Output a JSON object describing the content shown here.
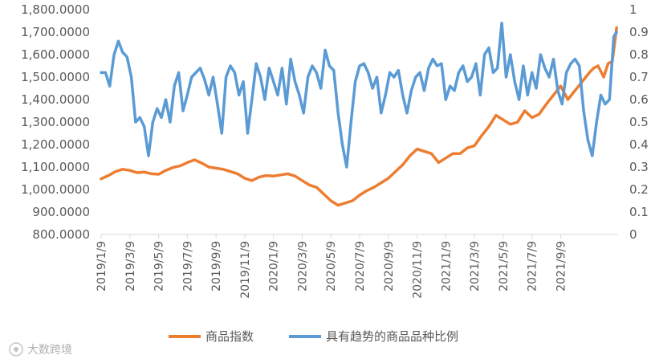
{
  "chart_data": {
    "type": "line",
    "title": "",
    "xlabel": "",
    "ylabel": "",
    "ylim": [
      800,
      1800
    ],
    "y2lim": [
      0,
      1
    ],
    "grid": false,
    "legend_position": "bottom",
    "left_ticks": [
      "800.0000",
      "900.0000",
      "1,000.0000",
      "1,100.0000",
      "1,200.0000",
      "1,300.0000",
      "1,400.0000",
      "1,500.0000",
      "1,600.0000",
      "1,700.0000",
      "1,800.0000"
    ],
    "right_ticks": [
      "0",
      "0.1",
      "0.2",
      "0.3",
      "0.4",
      "0.5",
      "0.6",
      "0.7",
      "0.8",
      "0.9",
      "1"
    ],
    "x_ticks": [
      "2019/1/9",
      "2019/3/9",
      "2019/5/9",
      "2019/7/9",
      "2019/9/9",
      "2019/11/9",
      "2020/1/9",
      "2020/3/9",
      "2020/5/9",
      "2020/7/9",
      "2020/9/9",
      "2020/11/9",
      "2021/1/9",
      "2021/3/9",
      "2021/5/9",
      "2021/7/9",
      "2021/9/9"
    ],
    "x_range_months": [
      0,
      36
    ],
    "series": [
      {
        "name": "商品指数",
        "axis": "left",
        "color": "#ED7D31",
        "x": [
          0,
          0.5,
          1.0,
          1.5,
          2.0,
          2.5,
          3.0,
          3.5,
          4.0,
          4.5,
          5.0,
          5.5,
          6.0,
          6.5,
          7.0,
          7.5,
          8.0,
          8.5,
          9.0,
          9.5,
          10.0,
          10.5,
          11.0,
          11.5,
          12.0,
          12.5,
          13.0,
          13.5,
          14.0,
          14.5,
          15.0,
          15.5,
          16.0,
          16.5,
          17.0,
          17.5,
          18.0,
          18.5,
          19.0,
          19.5,
          20.0,
          20.5,
          21.0,
          21.5,
          22.0,
          22.5,
          23.0,
          23.5,
          24.0,
          24.5,
          25.0,
          25.5,
          26.0,
          26.5,
          27.0,
          27.5,
          28.0,
          28.5,
          29.0,
          29.5,
          30.0,
          30.5,
          31.0,
          31.5,
          32.0,
          32.5,
          33.0,
          33.5,
          34.0,
          34.3,
          34.6,
          35.0,
          35.3,
          35.6,
          35.9
        ],
        "values": [
          1048,
          1062,
          1080,
          1090,
          1085,
          1075,
          1078,
          1070,
          1068,
          1085,
          1098,
          1105,
          1120,
          1132,
          1118,
          1100,
          1095,
          1090,
          1080,
          1070,
          1050,
          1040,
          1055,
          1062,
          1060,
          1065,
          1070,
          1060,
          1040,
          1020,
          1010,
          980,
          950,
          930,
          940,
          950,
          975,
          995,
          1010,
          1030,
          1050,
          1080,
          1110,
          1150,
          1180,
          1170,
          1160,
          1120,
          1140,
          1160,
          1160,
          1185,
          1195,
          1240,
          1280,
          1330,
          1310,
          1290,
          1300,
          1350,
          1320,
          1335,
          1380,
          1420,
          1460,
          1400,
          1440,
          1480,
          1520,
          1540,
          1550,
          1500,
          1560,
          1570,
          1720
        ]
      },
      {
        "name": "具有趋势的商品品种比例",
        "axis": "right",
        "color": "#5B9BD5",
        "x": [
          0,
          0.3,
          0.6,
          0.9,
          1.2,
          1.5,
          1.8,
          2.1,
          2.4,
          2.7,
          3.0,
          3.3,
          3.6,
          3.9,
          4.2,
          4.5,
          4.8,
          5.1,
          5.4,
          5.7,
          6.0,
          6.3,
          6.6,
          6.9,
          7.2,
          7.5,
          7.8,
          8.1,
          8.4,
          8.7,
          9.0,
          9.3,
          9.6,
          9.9,
          10.2,
          10.5,
          10.8,
          11.1,
          11.4,
          11.7,
          12.0,
          12.3,
          12.6,
          12.9,
          13.2,
          13.5,
          13.8,
          14.1,
          14.4,
          14.7,
          15.0,
          15.3,
          15.6,
          15.9,
          16.2,
          16.5,
          16.8,
          17.1,
          17.4,
          17.7,
          18.0,
          18.3,
          18.6,
          18.9,
          19.2,
          19.5,
          19.8,
          20.1,
          20.4,
          20.7,
          21.0,
          21.3,
          21.6,
          21.9,
          22.2,
          22.5,
          22.8,
          23.1,
          23.4,
          23.7,
          24.0,
          24.3,
          24.6,
          24.9,
          25.2,
          25.5,
          25.8,
          26.1,
          26.4,
          26.7,
          27.0,
          27.3,
          27.6,
          27.9,
          28.2,
          28.5,
          28.8,
          29.1,
          29.4,
          29.7,
          30.0,
          30.3,
          30.6,
          30.9,
          31.2,
          31.5,
          31.8,
          32.1,
          32.4,
          32.7,
          33.0,
          33.3,
          33.6,
          33.9,
          34.2,
          34.5,
          34.8,
          35.1,
          35.4,
          35.7,
          35.9
        ],
        "values": [
          0.72,
          0.72,
          0.66,
          0.8,
          0.86,
          0.81,
          0.79,
          0.7,
          0.5,
          0.52,
          0.48,
          0.35,
          0.5,
          0.56,
          0.52,
          0.6,
          0.5,
          0.66,
          0.72,
          0.55,
          0.62,
          0.7,
          0.72,
          0.74,
          0.69,
          0.62,
          0.7,
          0.58,
          0.45,
          0.7,
          0.75,
          0.72,
          0.62,
          0.68,
          0.45,
          0.6,
          0.76,
          0.7,
          0.6,
          0.74,
          0.68,
          0.62,
          0.74,
          0.58,
          0.78,
          0.68,
          0.62,
          0.54,
          0.7,
          0.75,
          0.72,
          0.65,
          0.82,
          0.75,
          0.73,
          0.54,
          0.4,
          0.3,
          0.5,
          0.68,
          0.75,
          0.76,
          0.72,
          0.65,
          0.7,
          0.54,
          0.62,
          0.72,
          0.7,
          0.73,
          0.62,
          0.54,
          0.64,
          0.7,
          0.72,
          0.64,
          0.74,
          0.78,
          0.75,
          0.76,
          0.6,
          0.66,
          0.64,
          0.72,
          0.75,
          0.68,
          0.7,
          0.76,
          0.62,
          0.8,
          0.83,
          0.72,
          0.74,
          0.94,
          0.7,
          0.8,
          0.68,
          0.6,
          0.75,
          0.62,
          0.72,
          0.65,
          0.8,
          0.74,
          0.7,
          0.78,
          0.64,
          0.58,
          0.72,
          0.76,
          0.78,
          0.75,
          0.55,
          0.42,
          0.35,
          0.5,
          0.62,
          0.58,
          0.6,
          0.88,
          0.9
        ]
      }
    ]
  },
  "watermark": "大数跨境"
}
